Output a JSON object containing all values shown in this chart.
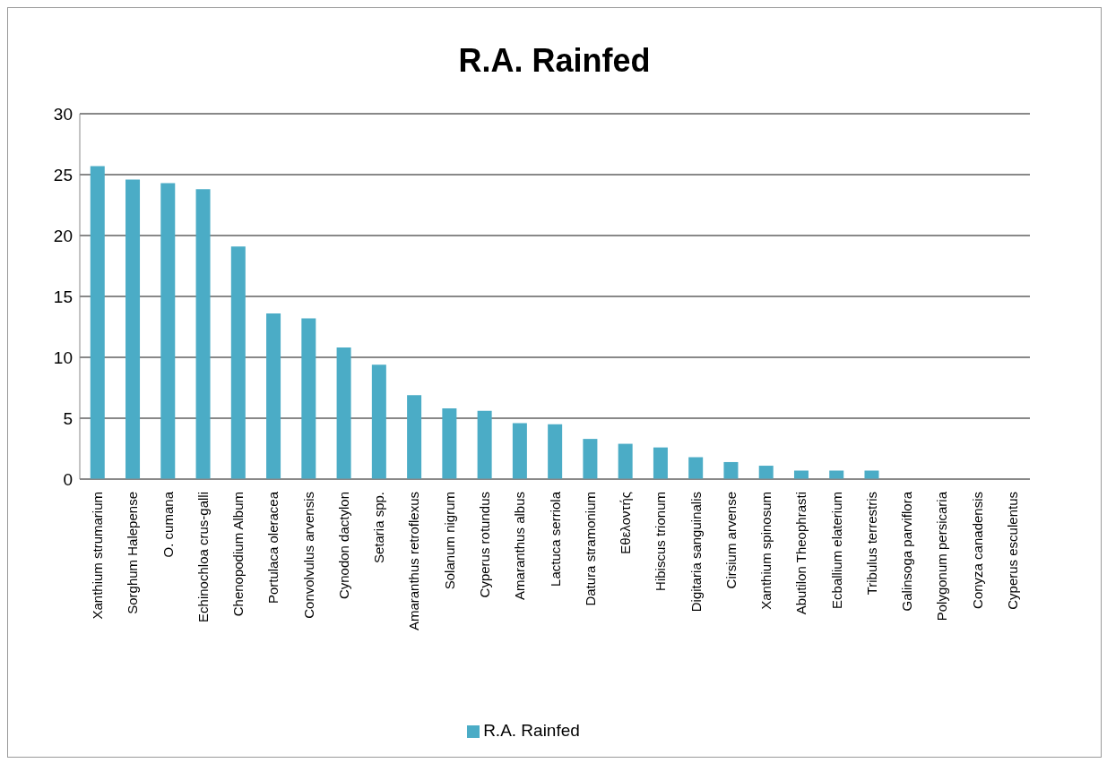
{
  "chart_data": {
    "type": "bar",
    "title": "R.A. Rainfed",
    "categories": [
      "Xanthium strumarium",
      "Sorghum Halepense",
      "O. cumana",
      "Echinochloa crus-galli",
      "Chenopodium  Album",
      "Portulaca oleracea",
      "Convolvulus arvensis",
      "Cynodon dactylon",
      "Setaria spp.",
      "Amaranthus retroflexus",
      "Solanum nigrum",
      "Cyperus rotundus",
      "Amaranthus albus",
      "Lactuca serriola",
      "Datura stramonium",
      "Εθελοντής",
      "Hibiscus trionum",
      "Digitaria sanguinalis",
      "Cirsium arvense",
      "Xanthium spinosum",
      "Abutilon Theophrasti",
      "Ecballium elaterium",
      "Tribulus terrestris",
      "Galinsoga parviflora",
      "Polygonum persicaria",
      "Conyza canadensis",
      "Cyperus esculentus"
    ],
    "series": [
      {
        "name": "R.A. Rainfed",
        "color": "#4bacc6",
        "values": [
          25.7,
          24.6,
          24.3,
          23.8,
          19.1,
          13.6,
          13.2,
          10.8,
          9.4,
          6.9,
          5.8,
          5.6,
          4.6,
          4.5,
          3.3,
          2.9,
          2.6,
          1.8,
          1.4,
          1.1,
          0.7,
          0.7,
          0.7,
          0,
          0,
          0,
          0
        ]
      }
    ],
    "ylim": [
      0,
      30
    ],
    "yticks": [
      0,
      5,
      10,
      15,
      20,
      25,
      30
    ],
    "grid": "y",
    "legend": "bottom"
  }
}
